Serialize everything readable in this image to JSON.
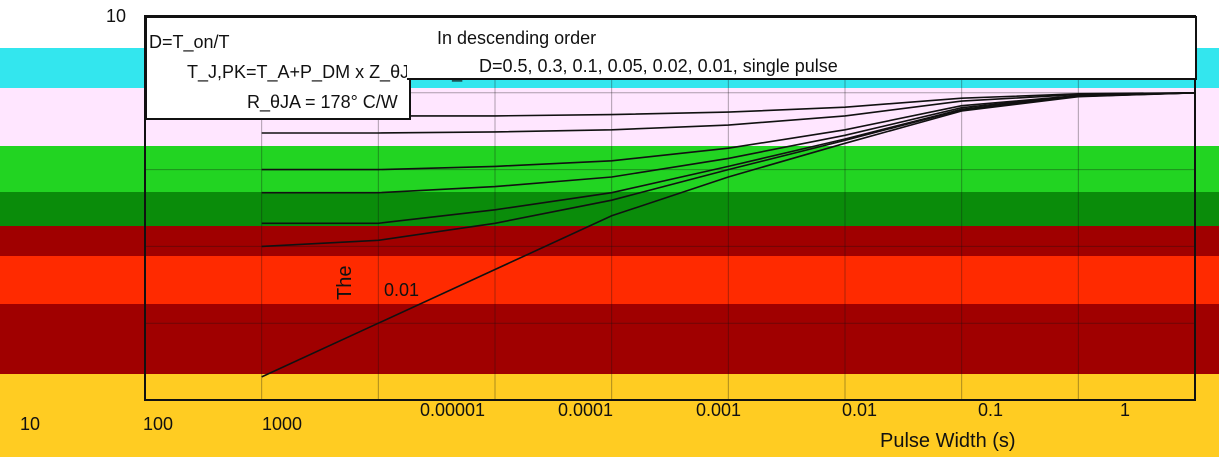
{
  "chart_data": {
    "type": "line",
    "title": "",
    "xlabel": "Pulse Width (s)",
    "ylabel": "The",
    "x_scale": "log",
    "xlim": [
      1e-06,
      1000
    ],
    "x_tick_labels": [
      "10",
      "100",
      "1000",
      "0.00001",
      "0.0001",
      "0.001",
      "0.01",
      "0.1",
      "1"
    ],
    "y_tick_labels": [
      "10",
      "0.01"
    ],
    "legend": {
      "placement": "top-left",
      "lines": [
        "D=T_on/T",
        "T_J,PK=T_A+P_DM x Z_θJA x R_θJA",
        "R_θJA = 178° C/W"
      ]
    },
    "annotations": [
      "In descending order",
      "D=0.5, 0.3, 0.1, 0.05, 0.02, 0.01, single pulse"
    ],
    "series": [
      {
        "name": "D=0.5",
        "x": [
          1e-05,
          0.0001,
          0.001,
          0.01,
          0.1,
          1,
          10,
          100,
          1000
        ],
        "y": [
          0.5,
          0.5,
          0.5,
          0.52,
          0.56,
          0.65,
          0.85,
          0.97,
          1.0
        ]
      },
      {
        "name": "D=0.3",
        "x": [
          1e-05,
          0.0001,
          0.001,
          0.01,
          0.1,
          1,
          10,
          100,
          1000
        ],
        "y": [
          0.3,
          0.3,
          0.31,
          0.33,
          0.38,
          0.5,
          0.78,
          0.95,
          1.0
        ]
      },
      {
        "name": "D=0.1",
        "x": [
          1e-05,
          0.0001,
          0.001,
          0.01,
          0.1,
          1,
          10,
          100,
          1000
        ],
        "y": [
          0.1,
          0.1,
          0.11,
          0.13,
          0.19,
          0.33,
          0.68,
          0.92,
          1.0
        ]
      },
      {
        "name": "D=0.05",
        "x": [
          1e-05,
          0.0001,
          0.001,
          0.01,
          0.1,
          1,
          10,
          100,
          1000
        ],
        "y": [
          0.05,
          0.05,
          0.06,
          0.08,
          0.14,
          0.28,
          0.64,
          0.91,
          1.0
        ]
      },
      {
        "name": "D=0.02",
        "x": [
          1e-05,
          0.0001,
          0.001,
          0.01,
          0.1,
          1,
          10,
          100,
          1000
        ],
        "y": [
          0.02,
          0.02,
          0.03,
          0.05,
          0.11,
          0.25,
          0.61,
          0.9,
          1.0
        ]
      },
      {
        "name": "D=0.01",
        "x": [
          1e-05,
          0.0001,
          0.001,
          0.01,
          0.1,
          1,
          10,
          100,
          1000
        ],
        "y": [
          0.01,
          0.012,
          0.02,
          0.04,
          0.1,
          0.24,
          0.6,
          0.9,
          1.0
        ]
      },
      {
        "name": "single pulse",
        "x": [
          1e-05,
          0.0001,
          0.001,
          0.01,
          0.1,
          1,
          10,
          100,
          1000
        ],
        "y": [
          0.0002,
          0.001,
          0.005,
          0.025,
          0.08,
          0.22,
          0.58,
          0.89,
          1.0
        ]
      }
    ]
  },
  "colors": {
    "band_cyan": "#33e6ee",
    "band_pink": "#ffe6ff",
    "band_green": "#0a8c0a",
    "band_bright_green": "#22d422",
    "band_red": "#a00000",
    "band_orange_red": "#ff2a00",
    "band_yellow": "#ffcc22",
    "line_color": "#111111"
  }
}
